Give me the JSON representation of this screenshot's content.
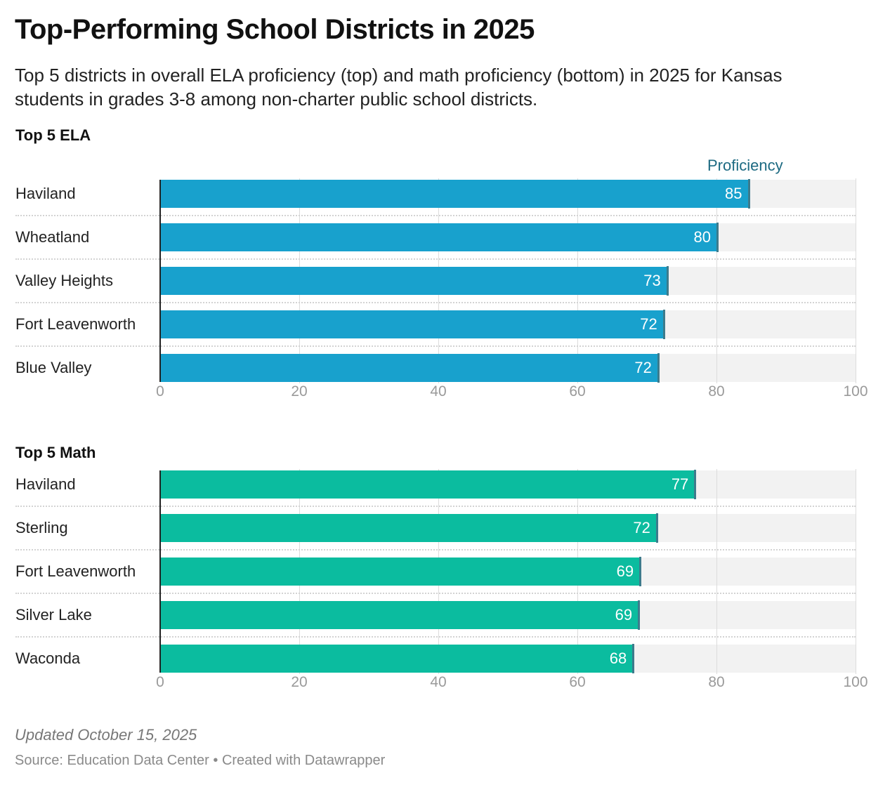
{
  "title": "Top-Performing School Districts in 2025",
  "subtitle": "Top 5 districts in overall ELA proficiency (top) and math proficiency (bottom) in 2025 for Kansas students in grades 3-8 among non-charter public school districts.",
  "notes": "Updated October 15, 2025",
  "source": "Source: Education Data Center • Created with Datawrapper",
  "colors": {
    "ela": "#18a1cd",
    "math": "#0bbc9f",
    "endmark": "#3d7b8c",
    "legend": "#1d6a82"
  },
  "chart_data": [
    {
      "type": "bar",
      "title": "Top 5 ELA",
      "legend": "Proficiency",
      "categories": [
        "Haviland",
        "Wheatland",
        "Valley Heights",
        "Fort Leavenworth",
        "Blue Valley"
      ],
      "values": [
        84.7,
        80.2,
        73.0,
        72.5,
        71.7
      ],
      "labels": [
        "85",
        "80",
        "73",
        "72",
        "72"
      ],
      "xlim": [
        0,
        100
      ],
      "ticks": [
        "0",
        "20",
        "40",
        "60",
        "80",
        "100"
      ]
    },
    {
      "type": "bar",
      "title": "Top 5 Math",
      "categories": [
        "Haviland",
        "Sterling",
        "Fort Leavenworth",
        "Silver Lake",
        "Waconda"
      ],
      "values": [
        77.0,
        71.5,
        69.1,
        68.9,
        68.1
      ],
      "labels": [
        "77",
        "72",
        "69",
        "69",
        "68"
      ],
      "xlim": [
        0,
        100
      ],
      "ticks": [
        "0",
        "20",
        "40",
        "60",
        "80",
        "100"
      ]
    }
  ]
}
